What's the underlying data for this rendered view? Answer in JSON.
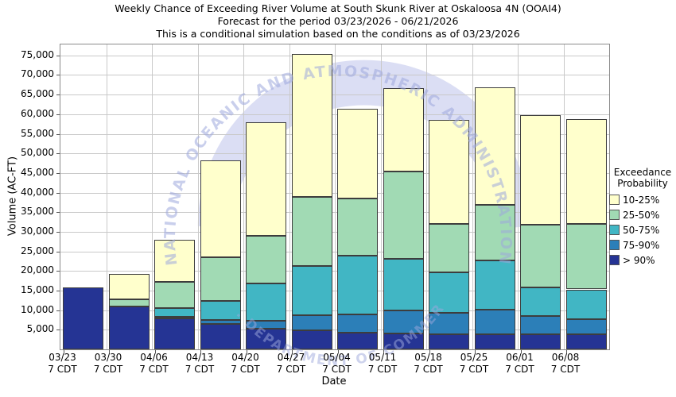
{
  "title": {
    "line1": "Weekly Chance of Exceeding River Volume at South Skunk River at Oskaloosa 4N (OOAI4)",
    "line2": "Forecast for the period 03/23/2026 - 06/21/2026",
    "line3": "This is a conditional simulation based on the conditions as of 03/23/2026"
  },
  "axes": {
    "x_label": "Date",
    "y_label": "Volume (AC-FT)"
  },
  "legend": {
    "title_line1": "Exceedance",
    "title_line2": "Probability"
  },
  "watermark": {
    "arc_text_top": "NATIONAL OCEANIC AND ATMOSPHERIC ADMINISTRATION",
    "arc_text_bottom": "U.S. DEPARTMENT OF COMMERCE",
    "text_color": "#9ea8dd",
    "dome_color": "#d7daf3"
  },
  "chart_data": {
    "type": "bar",
    "stacked": true,
    "title": "Weekly Chance of Exceeding River Volume at South Skunk River at Oskaloosa 4N (OOAI4)",
    "xlabel": "Date",
    "ylabel": "Volume (AC-FT)",
    "ylim": [
      0,
      77800
    ],
    "ytick_step": 5000,
    "ytick_max": 75000,
    "grid": true,
    "legend_position": "right",
    "categories": [
      "03/23",
      "03/30",
      "04/06",
      "04/13",
      "04/20",
      "04/27",
      "05/04",
      "05/11",
      "05/18",
      "05/25",
      "06/01",
      "06/08"
    ],
    "category_sublabel": "7 CDT",
    "series_note": "values are cumulative stack tops in AC-FT, bottom band first",
    "series": [
      {
        "key": "gt90",
        "name": "> 90%",
        "color": "#253494",
        "cumulative_top": [
          15800,
          10950,
          7900,
          6400,
          5300,
          4900,
          4200,
          4000,
          3800,
          3900,
          3900,
          3800
        ]
      },
      {
        "key": "p75-90",
        "name": "75-90%",
        "color": "#2c7fb8",
        "cumulative_top": [
          15800,
          10950,
          8300,
          7500,
          7300,
          8800,
          9000,
          9900,
          9400,
          10200,
          8500,
          7700
        ]
      },
      {
        "key": "p50-75",
        "name": "50-75%",
        "color": "#41b6c4",
        "cumulative_top": [
          15800,
          10950,
          10500,
          12400,
          16800,
          21200,
          23900,
          23100,
          19700,
          22600,
          15900,
          15300
        ]
      },
      {
        "key": "p25-50",
        "name": "25-50%",
        "color": "#a1dab4",
        "cumulative_top": [
          15800,
          12800,
          17200,
          23600,
          29000,
          38900,
          38500,
          45300,
          32100,
          36900,
          31900,
          32100
        ]
      },
      {
        "key": "p10-25",
        "name": "10-25%",
        "color": "#ffffcc",
        "cumulative_top": [
          15800,
          19200,
          28000,
          48300,
          57900,
          75400,
          61300,
          66600,
          58500,
          66900,
          59800,
          58700
        ]
      }
    ]
  }
}
